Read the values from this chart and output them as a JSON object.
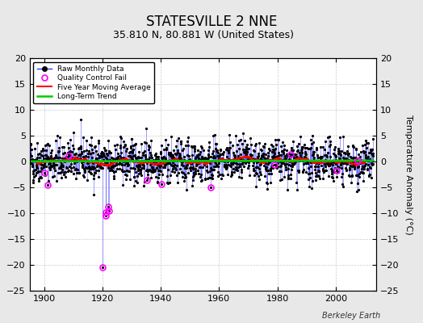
{
  "title": "STATESVILLE 2 NNE",
  "subtitle": "35.810 N, 80.881 W (United States)",
  "ylabel": "Temperature Anomaly (°C)",
  "xlim": [
    1895,
    2014
  ],
  "ylim": [
    -25,
    20
  ],
  "yticks": [
    -25,
    -20,
    -15,
    -10,
    -5,
    0,
    5,
    10,
    15,
    20
  ],
  "xticks": [
    1900,
    1920,
    1940,
    1960,
    1980,
    2000
  ],
  "background_color": "#e8e8e8",
  "plot_background": "#ffffff",
  "raw_color": "#3333ff",
  "raw_marker_color": "#000000",
  "qc_fail_color": "#ff00ff",
  "moving_avg_color": "#ff0000",
  "trend_color": "#00cc00",
  "grid_color": "#cccccc",
  "title_fontsize": 12,
  "subtitle_fontsize": 9,
  "seed": 42,
  "start_year": 1895,
  "end_year": 2012,
  "attribution": "Berkeley Earth"
}
